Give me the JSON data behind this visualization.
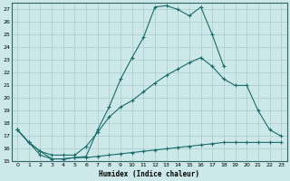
{
  "xlabel": "Humidex (Indice chaleur)",
  "bg_color": "#cce8e8",
  "grid_color": "#aacccc",
  "line_color": "#1a6b6b",
  "xlim": [
    -0.5,
    23.5
  ],
  "ylim": [
    15,
    27.5
  ],
  "xticks": [
    0,
    1,
    2,
    3,
    4,
    5,
    6,
    7,
    8,
    9,
    10,
    11,
    12,
    13,
    14,
    15,
    16,
    17,
    18,
    19,
    20,
    21,
    22,
    23
  ],
  "yticks": [
    15,
    16,
    17,
    18,
    19,
    20,
    21,
    22,
    23,
    24,
    25,
    26,
    27
  ],
  "line1_x": [
    0,
    1,
    2,
    3,
    4,
    5,
    6,
    7,
    8,
    9,
    10,
    11,
    12,
    13,
    14,
    15,
    16,
    17,
    18
  ],
  "line1_y": [
    17.5,
    16.5,
    15.8,
    15.2,
    15.2,
    15.3,
    15.4,
    17.5,
    19.3,
    21.5,
    23.2,
    24.8,
    27.2,
    27.3,
    27.0,
    26.5,
    27.2,
    25.0,
    22.5
  ],
  "line2_x": [
    0,
    1,
    2,
    3,
    4,
    5,
    6,
    7,
    8,
    9,
    10,
    11,
    12,
    13,
    14,
    15,
    16,
    17,
    18,
    19,
    20,
    21,
    22,
    23
  ],
  "line2_y": [
    17.5,
    16.5,
    15.8,
    15.5,
    15.5,
    15.5,
    16.2,
    17.3,
    18.5,
    19.3,
    19.8,
    20.5,
    21.2,
    21.8,
    22.3,
    22.8,
    23.2,
    22.5,
    21.5,
    21.0,
    21.0,
    19.0,
    17.5,
    17.0
  ],
  "line3_x": [
    0,
    1,
    2,
    3,
    4,
    5,
    6,
    7,
    8,
    9,
    10,
    11,
    12,
    13,
    14,
    15,
    16,
    17,
    18,
    19,
    20,
    21,
    22,
    23
  ],
  "line3_y": [
    17.5,
    16.5,
    15.5,
    15.2,
    15.2,
    15.3,
    15.3,
    15.4,
    15.5,
    15.6,
    15.7,
    15.8,
    15.9,
    16.0,
    16.1,
    16.2,
    16.3,
    16.4,
    16.5,
    16.5,
    16.5,
    16.5,
    16.5,
    16.5
  ]
}
